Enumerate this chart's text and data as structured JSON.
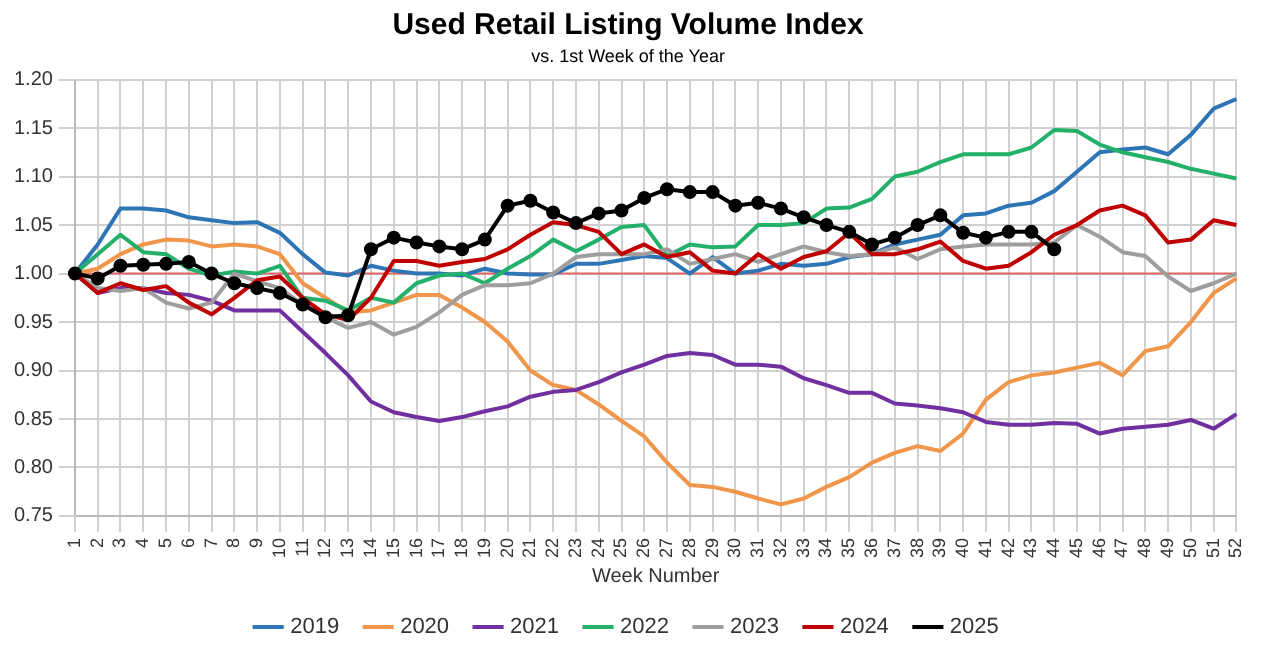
{
  "chart_data": {
    "type": "line",
    "title": "Used Retail Listing Volume Index",
    "subtitle": "vs. 1st Week of the Year",
    "xlabel": "Week Number",
    "categories": [
      "1",
      "2",
      "3",
      "4",
      "5",
      "6",
      "7",
      "8",
      "9",
      "10",
      "11",
      "12",
      "13",
      "14",
      "15",
      "16",
      "17",
      "18",
      "19",
      "20",
      "21",
      "22",
      "23",
      "24",
      "25",
      "26",
      "27",
      "28",
      "29",
      "30",
      "31",
      "32",
      "33",
      "34",
      "35",
      "36",
      "37",
      "38",
      "39",
      "40",
      "41",
      "42",
      "43",
      "44",
      "45",
      "46",
      "47",
      "48",
      "49",
      "50",
      "51",
      "52"
    ],
    "ylim": [
      0.75,
      1.2
    ],
    "yticks": [
      {
        "value": 0.75,
        "label": "0.75"
      },
      {
        "value": 0.8,
        "label": "0.80"
      },
      {
        "value": 0.85,
        "label": "0.85"
      },
      {
        "value": 0.9,
        "label": "0.90"
      },
      {
        "value": 0.95,
        "label": "0.95"
      },
      {
        "value": 1,
        "label": "1.00"
      },
      {
        "value": 1.05,
        "label": "1.05"
      },
      {
        "value": 1.1,
        "label": "1.10"
      },
      {
        "value": 1.15,
        "label": "1.15"
      },
      {
        "value": 1.2,
        "label": "1.20"
      }
    ],
    "grid": true,
    "legend": "bottom",
    "line_style": "solid",
    "ref_lines": [
      {
        "axis": "y",
        "value": 1,
        "color": "#e06666"
      }
    ],
    "series": [
      {
        "name": "2019",
        "color": "#2e75b6",
        "marker": "none",
        "values": [
          1.0,
          1.03,
          1.067,
          1.067,
          1.065,
          1.058,
          1.055,
          1.052,
          1.053,
          1.042,
          1.02,
          1.001,
          0.998,
          1.008,
          1.003,
          1.0,
          1.0,
          0.998,
          1.005,
          1.0,
          0.999,
          0.999,
          1.01,
          1.01,
          1.014,
          1.018,
          1.016,
          1.0,
          1.017,
          1.0,
          1.003,
          1.01,
          1.008,
          1.01,
          1.017,
          1.02,
          1.03,
          1.035,
          1.04,
          1.06,
          1.062,
          1.07,
          1.073,
          1.085,
          1.105,
          1.125,
          1.128,
          1.13,
          1.123,
          1.143,
          1.17,
          1.18
        ]
      },
      {
        "name": "2020",
        "color": "#f0964a",
        "marker": "none",
        "values": [
          1.0,
          1.005,
          1.02,
          1.03,
          1.035,
          1.034,
          1.028,
          1.03,
          1.028,
          1.02,
          0.99,
          0.975,
          0.96,
          0.962,
          0.97,
          0.978,
          0.978,
          0.965,
          0.95,
          0.93,
          0.9,
          0.885,
          0.88,
          0.865,
          0.848,
          0.832,
          0.805,
          0.782,
          0.78,
          0.775,
          0.768,
          0.762,
          0.768,
          0.78,
          0.79,
          0.805,
          0.815,
          0.822,
          0.817,
          0.835,
          0.87,
          0.888,
          0.895,
          0.898,
          0.903,
          0.908,
          0.895,
          0.92,
          0.925,
          0.95,
          0.98,
          0.995
        ]
      },
      {
        "name": "2021",
        "color": "#7030a0",
        "marker": "none",
        "values": [
          1.0,
          0.98,
          0.985,
          0.985,
          0.98,
          0.978,
          0.972,
          0.962,
          0.962,
          0.962,
          0.94,
          0.918,
          0.895,
          0.868,
          0.857,
          0.852,
          0.848,
          0.852,
          0.858,
          0.863,
          0.873,
          0.878,
          0.88,
          0.888,
          0.898,
          0.906,
          0.915,
          0.918,
          0.916,
          0.906,
          0.906,
          0.904,
          0.892,
          0.885,
          0.877,
          0.877,
          0.866,
          0.864,
          0.861,
          0.857,
          0.847,
          0.844,
          0.844,
          0.846,
          0.845,
          0.835,
          0.84,
          0.842,
          0.844,
          0.849,
          0.84,
          0.855
        ]
      },
      {
        "name": "2022",
        "color": "#22b06a",
        "marker": "none",
        "values": [
          1.0,
          1.02,
          1.04,
          1.022,
          1.02,
          1.005,
          0.998,
          1.002,
          1.0,
          1.008,
          0.975,
          0.972,
          0.962,
          0.975,
          0.97,
          0.99,
          0.998,
          1.0,
          0.99,
          1.005,
          1.018,
          1.035,
          1.023,
          1.035,
          1.048,
          1.05,
          1.018,
          1.03,
          1.027,
          1.028,
          1.05,
          1.05,
          1.052,
          1.067,
          1.068,
          1.077,
          1.1,
          1.105,
          1.115,
          1.123,
          1.123,
          1.123,
          1.13,
          1.148,
          1.147,
          1.133,
          1.125,
          1.12,
          1.115,
          1.108,
          1.103,
          1.098
        ]
      },
      {
        "name": "2023",
        "color": "#9e9e9e",
        "marker": "none",
        "values": [
          1.0,
          0.985,
          0.982,
          0.985,
          0.97,
          0.964,
          0.97,
          1.0,
          0.992,
          0.985,
          0.968,
          0.955,
          0.944,
          0.95,
          0.937,
          0.945,
          0.96,
          0.978,
          0.988,
          0.988,
          0.99,
          1.0,
          1.017,
          1.02,
          1.02,
          1.02,
          1.025,
          1.01,
          1.015,
          1.02,
          1.012,
          1.02,
          1.028,
          1.022,
          1.018,
          1.02,
          1.027,
          1.015,
          1.025,
          1.028,
          1.03,
          1.03,
          1.03,
          1.032,
          1.05,
          1.038,
          1.022,
          1.018,
          0.997,
          0.982,
          0.99,
          1.0
        ]
      },
      {
        "name": "2024",
        "color": "#c00000",
        "marker": "none",
        "values": [
          1.0,
          0.98,
          0.99,
          0.983,
          0.987,
          0.97,
          0.958,
          0.975,
          0.993,
          0.997,
          0.975,
          0.958,
          0.952,
          0.975,
          1.013,
          1.013,
          1.008,
          1.012,
          1.015,
          1.025,
          1.04,
          1.053,
          1.05,
          1.043,
          1.02,
          1.03,
          1.017,
          1.022,
          1.003,
          1.0,
          1.02,
          1.005,
          1.017,
          1.023,
          1.042,
          1.02,
          1.02,
          1.025,
          1.033,
          1.013,
          1.005,
          1.008,
          1.022,
          1.04,
          1.05,
          1.065,
          1.07,
          1.06,
          1.032,
          1.035,
          1.055,
          1.05
        ]
      },
      {
        "name": "2025",
        "color": "#000000",
        "marker": "circle",
        "values": [
          1.0,
          0.995,
          1.008,
          1.009,
          1.01,
          1.012,
          1.0,
          0.99,
          0.985,
          0.98,
          0.968,
          0.955,
          0.957,
          1.025,
          1.037,
          1.032,
          1.028,
          1.025,
          1.035,
          1.07,
          1.075,
          1.063,
          1.052,
          1.062,
          1.065,
          1.078,
          1.087,
          1.084,
          1.084,
          1.07,
          1.073,
          1.067,
          1.058,
          1.05,
          1.043,
          1.03,
          1.037,
          1.05,
          1.06,
          1.042,
          1.037,
          1.043,
          1.043,
          1.025,
          null,
          null,
          null,
          null,
          null,
          null,
          null,
          null
        ]
      }
    ]
  }
}
